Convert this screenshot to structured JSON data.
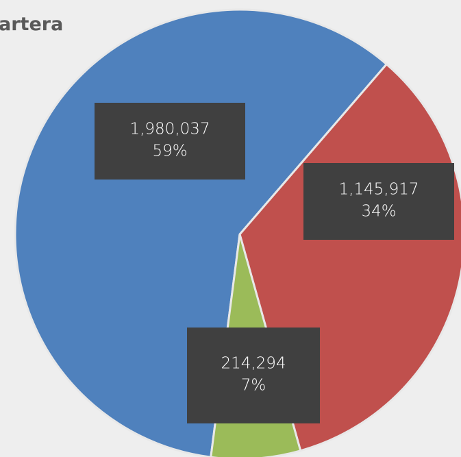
{
  "chart_data": {
    "type": "pie",
    "title": "artera",
    "values": [
      1980037,
      1145917,
      214294
    ],
    "value_labels": [
      "1,980,037",
      "1,145,917",
      "214,294"
    ],
    "percent_labels": [
      "59%",
      "34%",
      "7%"
    ],
    "colors": [
      "#4f81bd",
      "#c0504d",
      "#9bbb59"
    ]
  }
}
